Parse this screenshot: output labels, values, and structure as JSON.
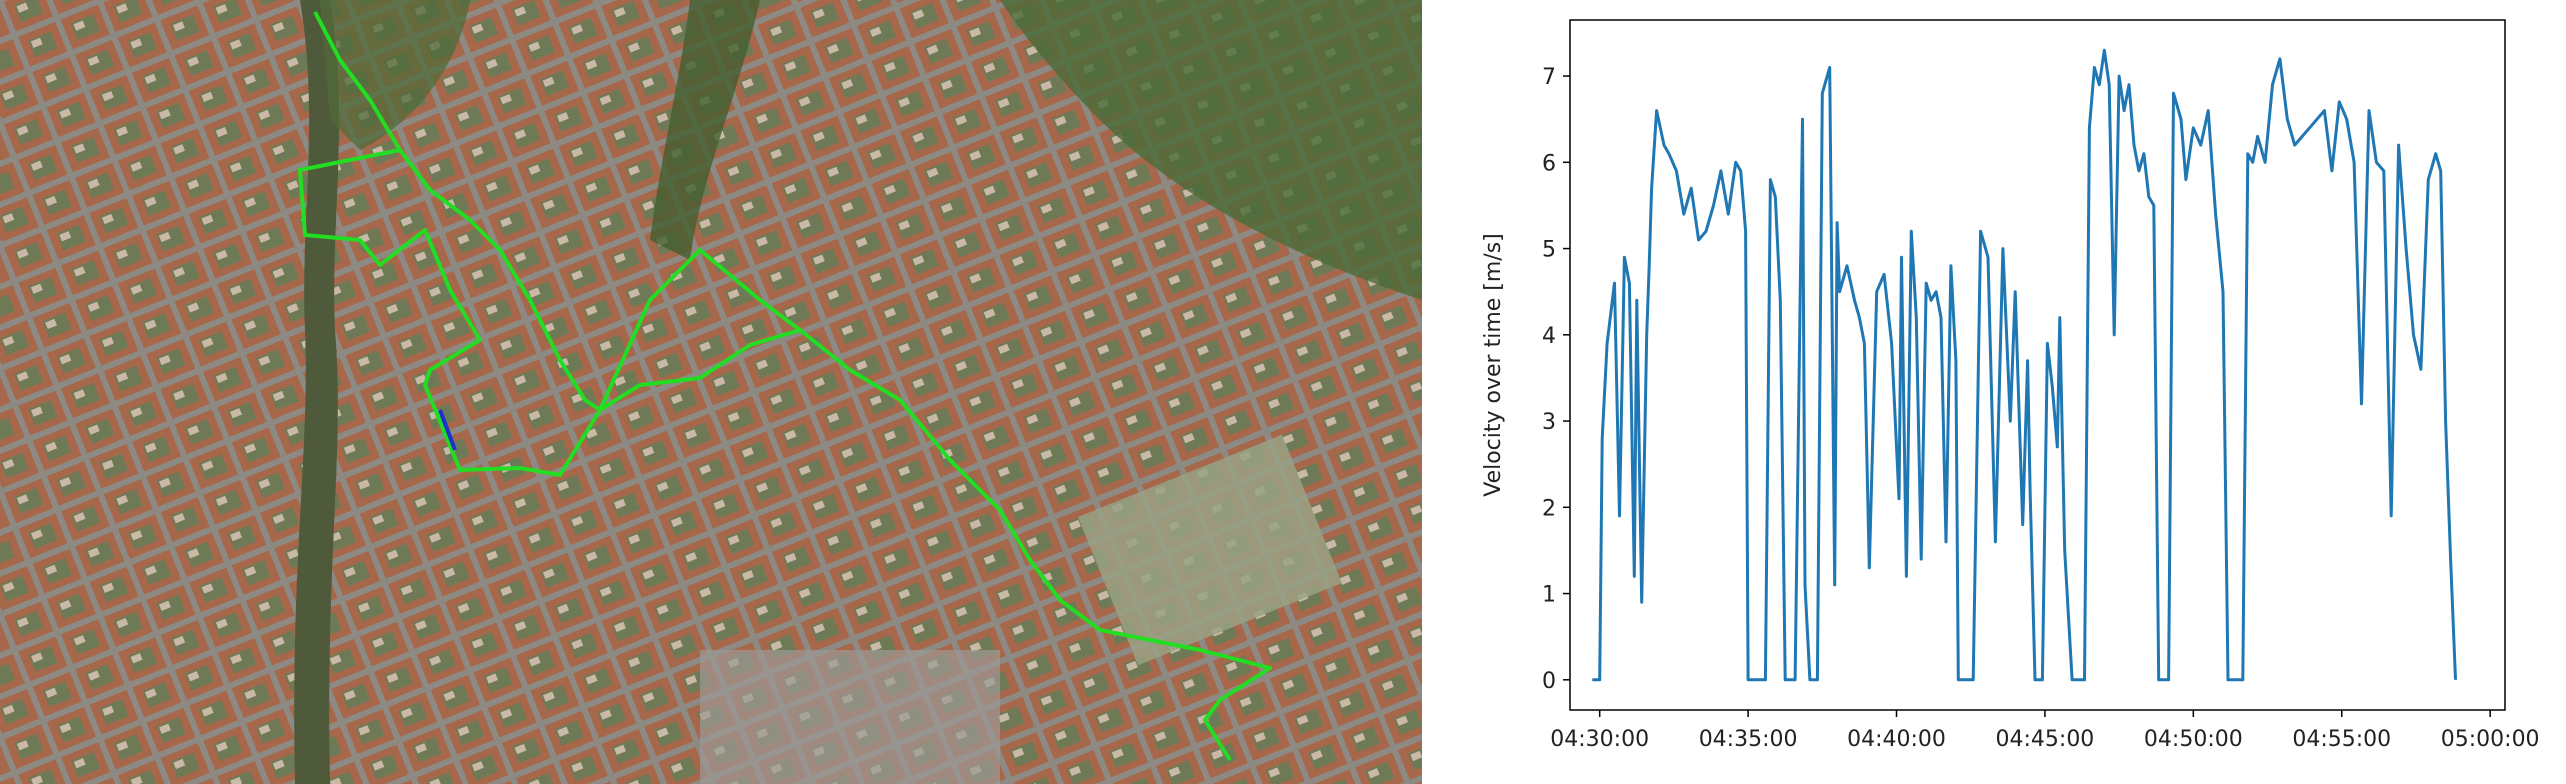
{
  "map": {
    "route_color": "#22dd22",
    "route_highlight_color": "#1a33cc",
    "background_color": "#7a6a55"
  },
  "chart_data": {
    "type": "line",
    "xlabel": "",
    "ylabel": "Velocity over time [m/s]",
    "xlim": [
      "04:29:00",
      "05:00:30"
    ],
    "ylim": [
      -0.35,
      7.65
    ],
    "grid": false,
    "legend": "none",
    "line_color": "#1f77b4",
    "x_tick_labels": [
      "04:30:00",
      "04:35:00",
      "04:40:00",
      "04:45:00",
      "04:50:00",
      "04:55:00",
      "05:00:00"
    ],
    "y_tick_labels": [
      "0",
      "1",
      "2",
      "3",
      "4",
      "5",
      "6",
      "7"
    ],
    "series": [
      {
        "x": [
          "04:29:45",
          "04:30:00",
          "04:30:05",
          "04:30:15",
          "04:30:30",
          "04:30:40",
          "04:30:50",
          "04:31:00",
          "04:31:10",
          "04:31:15",
          "04:31:25",
          "04:31:35",
          "04:31:40",
          "04:31:45",
          "04:31:55",
          "04:32:10",
          "04:32:20",
          "04:32:35",
          "04:32:50",
          "04:33:05",
          "04:33:20",
          "04:33:35",
          "04:33:50",
          "04:34:05",
          "04:34:20",
          "04:34:35",
          "04:34:45",
          "04:34:55",
          "04:35:00",
          "04:35:10",
          "04:35:25",
          "04:35:35",
          "04:35:45",
          "04:35:55",
          "04:36:05",
          "04:36:15",
          "04:36:20",
          "04:36:35",
          "04:36:50",
          "04:36:55",
          "04:37:05",
          "04:37:15",
          "04:37:20",
          "04:37:30",
          "04:37:45",
          "04:37:55",
          "04:38:00",
          "04:38:05",
          "04:38:20",
          "04:38:35",
          "04:38:45",
          "04:38:55",
          "04:39:05",
          "04:39:20",
          "04:39:35",
          "04:39:50",
          "04:40:05",
          "04:40:10",
          "04:40:20",
          "04:40:30",
          "04:40:40",
          "04:40:50",
          "04:41:00",
          "04:41:10",
          "04:41:20",
          "04:41:30",
          "04:41:40",
          "04:41:50",
          "04:42:00",
          "04:42:05",
          "04:42:20",
          "04:42:35",
          "04:42:50",
          "04:43:05",
          "04:43:20",
          "04:43:35",
          "04:43:50",
          "04:44:00",
          "04:44:15",
          "04:44:25",
          "04:44:30",
          "04:44:40",
          "04:44:55",
          "04:45:05",
          "04:45:15",
          "04:45:25",
          "04:45:30",
          "04:45:40",
          "04:45:55",
          "04:46:10",
          "04:46:20",
          "04:46:30",
          "04:46:40",
          "04:46:50",
          "04:47:00",
          "04:47:10",
          "04:47:20",
          "04:47:30",
          "04:47:40",
          "04:47:50",
          "04:48:00",
          "04:48:10",
          "04:48:20",
          "04:48:30",
          "04:48:40",
          "04:48:50",
          "04:49:00",
          "04:49:10",
          "04:49:20",
          "04:49:30",
          "04:49:35",
          "04:49:45",
          "04:50:00",
          "04:50:15",
          "04:50:30",
          "04:50:45",
          "04:51:00",
          "04:51:10",
          "04:51:20",
          "04:51:30",
          "04:51:40",
          "04:51:50",
          "04:52:00",
          "04:52:10",
          "04:52:25",
          "04:52:40",
          "04:52:55",
          "04:53:10",
          "04:53:25",
          "04:53:40",
          "04:53:55",
          "04:54:10",
          "04:54:25",
          "04:54:40",
          "04:54:55",
          "04:55:10",
          "04:55:25",
          "04:55:40",
          "04:55:55",
          "04:56:10",
          "04:56:25",
          "04:56:40",
          "04:56:55",
          "04:57:10",
          "04:57:25",
          "04:57:40",
          "04:57:55",
          "04:58:10",
          "04:58:20",
          "04:58:30",
          "04:58:40",
          "04:58:50"
        ],
        "y": [
          0.0,
          0.0,
          2.8,
          3.9,
          4.6,
          1.9,
          4.9,
          4.6,
          1.2,
          4.4,
          0.9,
          4.0,
          4.8,
          5.7,
          6.6,
          6.2,
          6.1,
          5.9,
          5.4,
          5.7,
          5.1,
          5.2,
          5.5,
          5.9,
          5.4,
          6.0,
          5.9,
          5.2,
          0.0,
          0.0,
          0.0,
          0.0,
          5.8,
          5.6,
          4.4,
          0.0,
          0.0,
          0.0,
          6.5,
          1.1,
          0.0,
          0.0,
          0.0,
          6.8,
          7.1,
          1.1,
          5.3,
          4.5,
          4.8,
          4.4,
          4.2,
          3.9,
          1.3,
          4.5,
          4.7,
          3.9,
          2.1,
          4.9,
          1.2,
          5.2,
          4.2,
          1.4,
          4.6,
          4.4,
          4.5,
          4.2,
          1.6,
          4.8,
          3.7,
          0.0,
          0.0,
          0.0,
          5.2,
          4.9,
          1.6,
          5.0,
          3.0,
          4.5,
          1.8,
          3.7,
          2.2,
          0.0,
          0.0,
          3.9,
          3.4,
          2.7,
          4.2,
          1.5,
          0.0,
          0.0,
          0.0,
          6.4,
          7.1,
          6.9,
          7.3,
          6.9,
          4.0,
          7.0,
          6.6,
          6.9,
          6.2,
          5.9,
          6.1,
          5.6,
          5.5,
          0.0,
          0.0,
          0.0,
          6.8,
          6.6,
          6.5,
          5.8,
          6.4,
          6.2,
          6.6,
          5.4,
          4.5,
          0.0,
          0.0,
          0.0,
          0.0,
          6.1,
          6.0,
          6.3,
          6.0,
          6.9,
          7.2,
          6.5,
          6.2,
          6.3,
          6.4,
          6.5,
          6.6,
          5.9,
          6.7,
          6.5,
          6.0,
          3.2,
          6.6,
          6.0,
          5.9,
          1.9,
          6.2,
          5.0,
          4.0,
          3.6,
          5.8,
          6.1,
          5.9,
          3.0,
          1.4,
          0.0
        ]
      }
    ]
  }
}
